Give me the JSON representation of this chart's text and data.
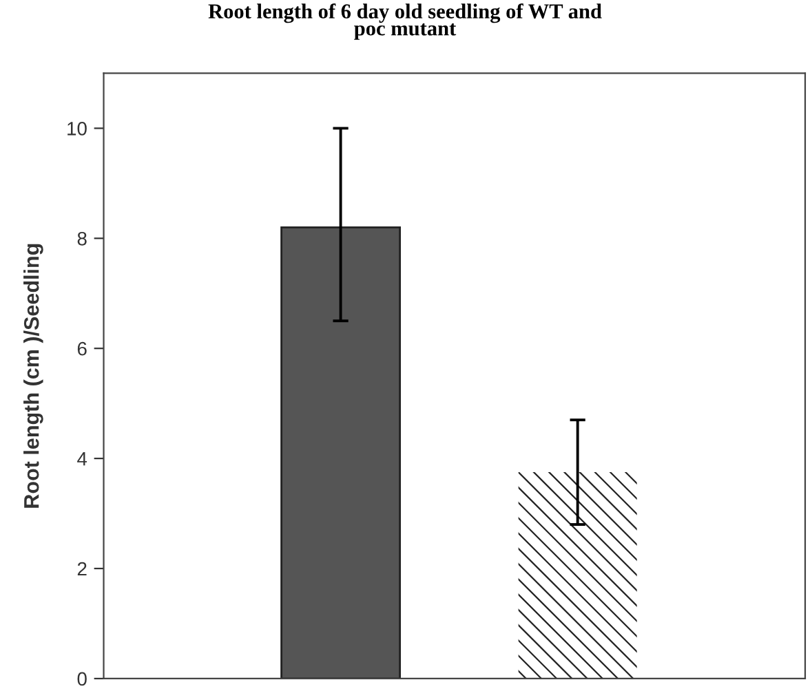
{
  "chart_data": {
    "type": "bar",
    "title": "Root length of 6 day old seedling of WT and\npoc mutant",
    "ylabel": "Root length (cm )/Seedling",
    "categories": [
      null,
      null
    ],
    "values": [
      8.2,
      3.75
    ],
    "errors": [
      [
        6.5,
        10.0
      ],
      0.95
    ],
    "colors": [
      "#555555",
      "#ffffff"
    ],
    "ylim": [
      0,
      11
    ],
    "yticks": [
      0,
      2,
      4,
      6,
      8,
      10
    ],
    "grid": false,
    "legend": false
  }
}
